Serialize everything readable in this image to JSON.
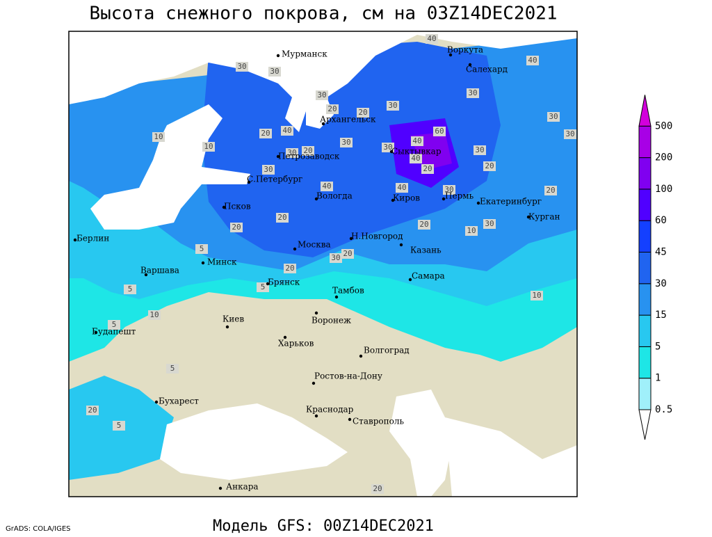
{
  "title": "Высота снежного покрова, см на 03Z14DEC2021",
  "footer": "Модель GFS: 00Z14DEC2021",
  "credit": "GrADS: COLA/IGES",
  "cities": [
    "Мурманск",
    "Воркута",
    "Салехард",
    "Архангельск",
    "Петрозаводск",
    "С.Петербург",
    "Сыктывкар",
    "Вологда",
    "Киров",
    "Пермь",
    "Екатеринбург",
    "Курган",
    "Псков",
    "Н.Новгород",
    "Берлин",
    "Москва",
    "Казань",
    "Минск",
    "Варшава",
    "Брянск",
    "Самара",
    "Тамбов",
    "Воронеж",
    "Киев",
    "Будапешт",
    "Харьков",
    "Волгоград",
    "Ростов-на-Дону",
    "Бухарест",
    "Краснодар",
    "Ставрополь",
    "Анкара"
  ],
  "contour_labels": [
    30,
    30,
    30,
    20,
    30,
    20,
    10,
    40,
    10,
    30,
    20,
    40,
    30,
    30,
    40,
    20,
    30,
    30,
    20,
    40,
    40,
    60,
    30,
    40,
    40,
    30,
    30,
    20,
    30,
    20,
    10,
    20,
    20,
    20,
    30,
    20,
    20,
    10,
    30,
    5,
    5,
    5,
    10,
    5,
    5,
    20,
    5,
    20
  ],
  "colorbar": {
    "levels": [
      0.5,
      1,
      5,
      15,
      30,
      45,
      60,
      100,
      200,
      500
    ],
    "colors": [
      "#ffffff",
      "#a0f0fa",
      "#1ee6e6",
      "#28c8f0",
      "#2892f0",
      "#2064f0",
      "#1440ff",
      "#5000ff",
      "#8000f0",
      "#a800e6",
      "#d200dc"
    ]
  }
}
